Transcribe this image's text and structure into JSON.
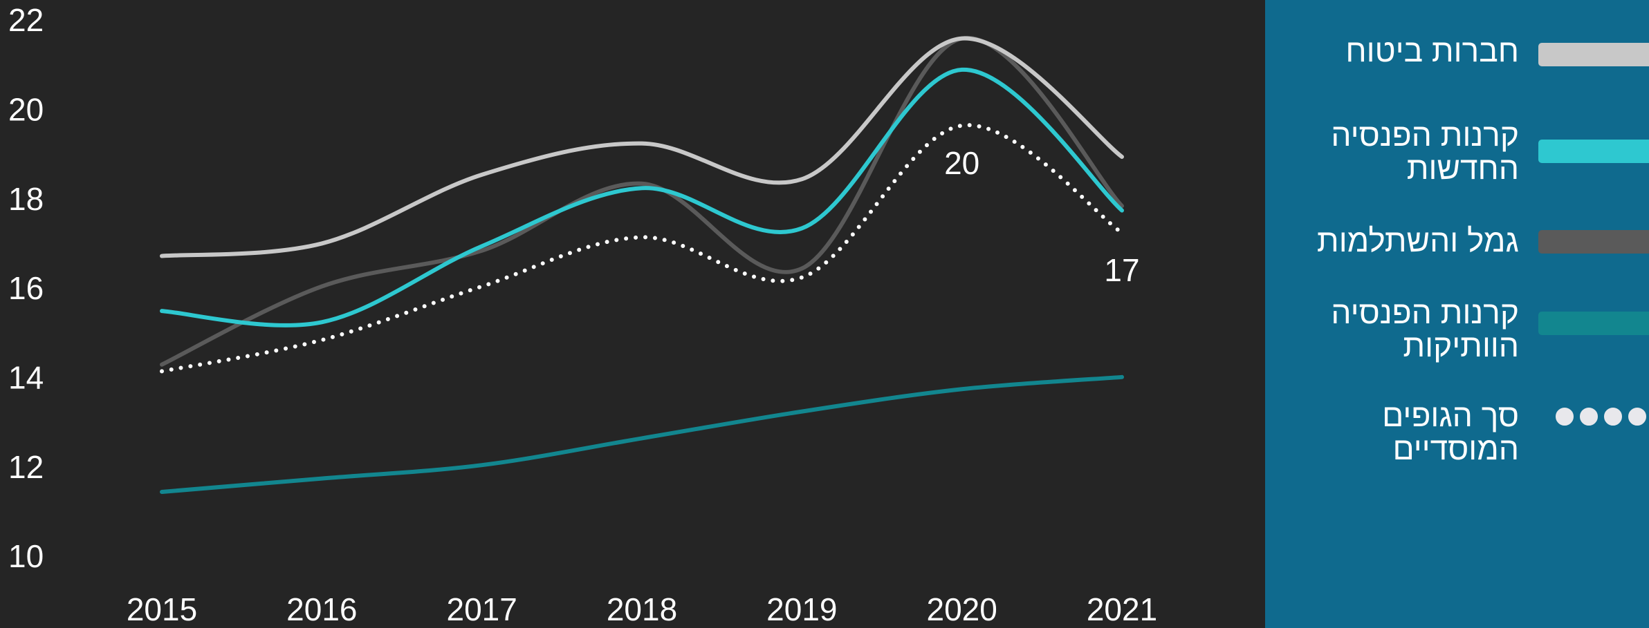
{
  "chart_data": {
    "type": "line",
    "x": [
      2015,
      2016,
      2017,
      2018,
      2019,
      2020,
      2021
    ],
    "xticks": [
      2015,
      2016,
      2017,
      2018,
      2019,
      2020,
      2021
    ],
    "xlim": [
      2015,
      2021
    ],
    "ylim": [
      10,
      22
    ],
    "yticks": [
      10,
      12,
      14,
      16,
      18,
      20,
      22
    ],
    "legend": "right",
    "series": [
      {
        "name": "חברות ביטוח",
        "color": "#c8c8c8",
        "style": "solid",
        "values": [
          16.78,
          17.06,
          18.6,
          19.3,
          18.5,
          21.65,
          19.0
        ]
      },
      {
        "name": "קרנות הפנסיה החדשות",
        "color": "#2ec8d0",
        "style": "solid",
        "values": [
          15.55,
          15.3,
          17.0,
          18.3,
          17.4,
          20.95,
          17.8
        ]
      },
      {
        "name": "גמל והשתלמות",
        "color": "#5a5a5a",
        "style": "solid",
        "values": [
          14.35,
          16.1,
          16.9,
          18.4,
          16.5,
          21.65,
          17.9
        ]
      },
      {
        "name": "קרנות הפנסיה הוותיקות",
        "color": "#12868f",
        "style": "solid",
        "values": [
          11.5,
          11.8,
          12.1,
          12.7,
          13.3,
          13.8,
          14.07
        ]
      },
      {
        "name": "סך הגופים המוסדיים",
        "color": "#ffffff",
        "style": "dotted",
        "values": [
          14.2,
          14.9,
          16.1,
          17.2,
          16.3,
          19.7,
          17.3
        ],
        "value_labels": [
          null,
          null,
          null,
          null,
          null,
          "20",
          "17"
        ]
      }
    ]
  }
}
